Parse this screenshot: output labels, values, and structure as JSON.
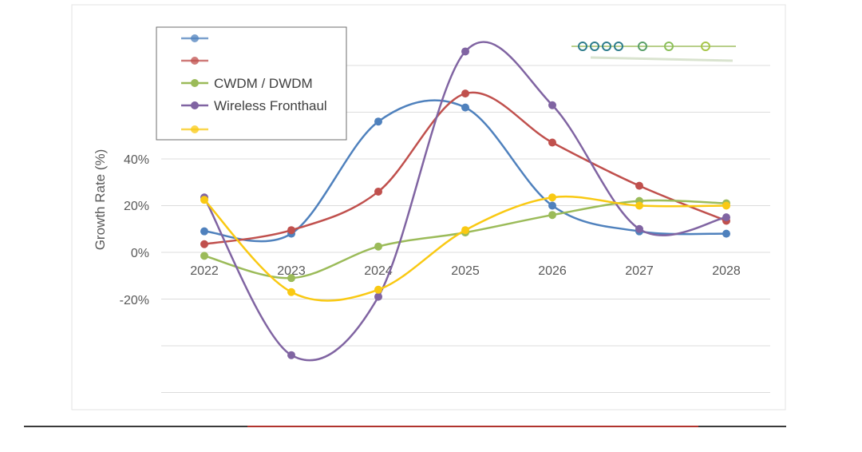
{
  "chart_data": {
    "type": "line",
    "title": "",
    "xlabel": "",
    "ylabel": "Growth Rate (%)",
    "categories": [
      "2022",
      "2023",
      "2024",
      "2025",
      "2026",
      "2027",
      "2028"
    ],
    "y_ticks": [
      "40%",
      "20%",
      "0%",
      "-20%"
    ],
    "y_tick_values": [
      40,
      20,
      0,
      -20
    ],
    "ylim": [
      -60,
      100
    ],
    "grid": true,
    "legend_position": "top-left",
    "series": [
      {
        "name": "",
        "color": "#4f81bd",
        "values": [
          9,
          8,
          56,
          62,
          20,
          9,
          8
        ]
      },
      {
        "name": "",
        "color": "#c0504d",
        "values": [
          3.5,
          9.5,
          26,
          68,
          47,
          28.5,
          13.5
        ]
      },
      {
        "name": "CWDM / DWDM",
        "color": "#9bbb59",
        "values": [
          -1.5,
          -11,
          2.5,
          8.5,
          16,
          22,
          21
        ]
      },
      {
        "name": "Wireless Fronthaul",
        "color": "#8064a2",
        "values": [
          23.5,
          -44,
          -19,
          86,
          63,
          10,
          15
        ]
      },
      {
        "name": "",
        "color": "#f9c913",
        "values": [
          22.5,
          -17,
          -16,
          9.5,
          23.5,
          20,
          20
        ]
      }
    ]
  }
}
